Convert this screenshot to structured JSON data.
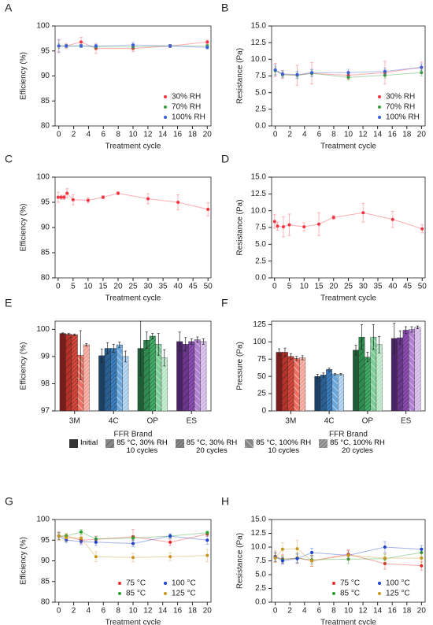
{
  "chart_data": [
    {
      "label": "A",
      "type": "line",
      "x_label": "Treatment cycle",
      "y_label": "Efficiency (%)",
      "x": [
        0,
        1,
        3,
        5,
        10,
        15,
        20
      ],
      "xlim": [
        -0.5,
        20.5
      ],
      "xticks": [
        0,
        2,
        4,
        6,
        8,
        10,
        12,
        14,
        16,
        18,
        20
      ],
      "ylim": [
        80,
        100
      ],
      "yticks": [
        80,
        85,
        90,
        95,
        100
      ],
      "legend": "lower right",
      "legend_columns": 1,
      "series": [
        {
          "name": "30% RH",
          "color": "#f5333f",
          "values": [
            96,
            96,
            96.8,
            95.5,
            95.5,
            96,
            96.8
          ],
          "errors": [
            1.2,
            0.5,
            0.9,
            1.0,
            0.6,
            0.3,
            0.4
          ]
        },
        {
          "name": "70% RH",
          "color": "#3a9a3a",
          "values": [
            96,
            96,
            96,
            95.8,
            95.8,
            96,
            96
          ],
          "errors": [
            0.5,
            0.3,
            0.3,
            0.4,
            0.4,
            0.3,
            0.3
          ]
        },
        {
          "name": "100% RH",
          "color": "#3a5fd9",
          "values": [
            96,
            96,
            96,
            96,
            96.2,
            96,
            95.7
          ],
          "errors": [
            1.3,
            0.3,
            0.3,
            0.3,
            0.5,
            0.3,
            0.3
          ]
        }
      ]
    },
    {
      "label": "B",
      "type": "line",
      "x_label": "Treatment cycle",
      "y_label": "Resistance (Pa)",
      "x": [
        0,
        1,
        3,
        5,
        10,
        15,
        20
      ],
      "xlim": [
        -0.5,
        20.5
      ],
      "xticks": [
        0,
        2,
        4,
        6,
        8,
        10,
        12,
        14,
        16,
        18,
        20
      ],
      "ylim": [
        0,
        15
      ],
      "yticks": [
        {
          "value": 0,
          "label": "0.0"
        },
        {
          "value": 2.5,
          "label": "2.5"
        },
        {
          "value": 5,
          "label": "5.0"
        },
        {
          "value": 7.5,
          "label": "7.5"
        },
        {
          "value": 10,
          "label": "10.0"
        },
        {
          "value": 12.5,
          "label": "12.5"
        },
        {
          "value": 15,
          "label": "15.0"
        }
      ],
      "legend": "lower right",
      "legend_columns": 1,
      "series": [
        {
          "name": "30% RH",
          "color": "#f5333f",
          "values": [
            8.4,
            7.7,
            7.6,
            7.9,
            7.6,
            8.0,
            8.8
          ],
          "errors": [
            1.0,
            0.6,
            1.5,
            1.6,
            0.6,
            1.7,
            0.8
          ]
        },
        {
          "name": "70% RH",
          "color": "#3a9a3a",
          "values": [
            8.3,
            7.7,
            7.6,
            7.9,
            7.3,
            7.6,
            8.0
          ],
          "errors": [
            0.6,
            0.4,
            0.5,
            0.5,
            0.4,
            0.4,
            0.5
          ]
        },
        {
          "name": "100% RH",
          "color": "#3a5fd9",
          "values": [
            8.4,
            7.8,
            7.7,
            8.0,
            8.0,
            8.2,
            8.8
          ],
          "errors": [
            0.8,
            0.5,
            0.5,
            0.5,
            0.5,
            0.5,
            0.5
          ]
        }
      ]
    },
    {
      "label": "C",
      "type": "line",
      "x_label": "Treatment cycle",
      "y_label": "Efficiency (%)",
      "x": [
        0,
        1,
        2,
        3,
        5,
        10,
        15,
        20,
        30,
        40,
        50
      ],
      "xlim": [
        -1,
        51
      ],
      "xticks": [
        0,
        5,
        10,
        15,
        20,
        25,
        30,
        35,
        40,
        45,
        50
      ],
      "ylim": [
        80,
        100
      ],
      "yticks": [
        80,
        85,
        90,
        95,
        100
      ],
      "color": "#f5333f",
      "values": [
        96,
        96,
        96,
        96.8,
        95.5,
        95.4,
        96,
        96.8,
        95.7,
        95,
        93.6
      ],
      "errors": [
        1.0,
        0.4,
        0.4,
        0.9,
        1.0,
        0.5,
        0.3,
        0.3,
        1.0,
        1.5,
        1.3
      ]
    },
    {
      "label": "D",
      "type": "line",
      "x_label": "Treatment cycle",
      "y_label": "Resistance (Pa)",
      "x": [
        0,
        1,
        3,
        5,
        10,
        15,
        20,
        30,
        40,
        50
      ],
      "xlim": [
        -1,
        51
      ],
      "xticks": [
        0,
        5,
        10,
        15,
        20,
        25,
        30,
        35,
        40,
        45,
        50
      ],
      "ylim": [
        0,
        15
      ],
      "yticks": [
        {
          "value": 0,
          "label": "0.0"
        },
        {
          "value": 2.5,
          "label": "2.5"
        },
        {
          "value": 5,
          "label": "5.0"
        },
        {
          "value": 7.5,
          "label": "7.5"
        },
        {
          "value": 10,
          "label": "10.0"
        },
        {
          "value": 12.5,
          "label": "12.5"
        },
        {
          "value": 15,
          "label": "15.0"
        }
      ],
      "color": "#f5333f",
      "values": [
        8.4,
        7.7,
        7.6,
        7.9,
        7.6,
        8.0,
        9.0,
        9.7,
        8.7,
        7.3
      ],
      "errors": [
        1.0,
        0.6,
        1.5,
        1.6,
        0.6,
        1.7,
        0.3,
        1.4,
        1.2,
        0.6
      ]
    },
    {
      "label": "E",
      "type": "bar",
      "x_label": "FFR Brand",
      "y_label": "Efficiency (%)",
      "categories": [
        "3M",
        "4C",
        "OP",
        "ES"
      ],
      "ylim": [
        97,
        100.3
      ],
      "yticks": [
        97,
        98,
        99,
        100
      ],
      "category_colors": [
        [
          "#7b1c1c",
          "#b83227",
          "#d9463a",
          "#ef6f62",
          "#f4a196"
        ],
        [
          "#1c3f66",
          "#2a5f94",
          "#3a7fc1",
          "#6aa7dc",
          "#a6cbeb"
        ],
        [
          "#1f5e36",
          "#2e8b4e",
          "#3fae66",
          "#7dcf97",
          "#b5e6c3"
        ],
        [
          "#4a2266",
          "#6b3590",
          "#8c4bb5",
          "#b182d1",
          "#d2b6e6"
        ]
      ],
      "series": [
        {
          "name": "Initial",
          "hatch": "solid",
          "values": [
            99.85,
            99.03,
            99.3,
            99.55
          ],
          "errors": [
            0.02,
            0.25,
            1.0,
            0.35
          ]
        },
        {
          "name": "85 °C, 30% RH\n10 cycles",
          "hatch": "sparse",
          "values": [
            99.82,
            99.3,
            99.6,
            99.45
          ],
          "errors": [
            0.03,
            0.2,
            0.3,
            0.25
          ]
        },
        {
          "name": "85 °C, 30% RH\n20 cycles",
          "hatch": "dense",
          "values": [
            99.8,
            99.3,
            99.75,
            99.55
          ],
          "errors": [
            0.03,
            0.15,
            0.1,
            0.1
          ]
        },
        {
          "name": "85 °C, 100% RH\n10 cycles",
          "hatch": "back-sparse",
          "values": [
            99.05,
            99.43,
            99.45,
            99.62
          ],
          "errors": [
            0.9,
            0.1,
            0.4,
            0.1
          ]
        },
        {
          "name": "85 °C, 100% RH\n20 cycles",
          "hatch": "back-dense",
          "values": [
            99.43,
            99.0,
            98.95,
            99.55
          ],
          "errors": [
            0.05,
            0.2,
            0.3,
            0.1
          ]
        }
      ]
    },
    {
      "label": "F",
      "type": "bar",
      "x_label": "FFR Brand",
      "y_label": "Pressure (Pa)",
      "categories": [
        "3M",
        "4C",
        "OP",
        "ES"
      ],
      "ylim": [
        0,
        130
      ],
      "yticks": [
        0,
        25,
        50,
        75,
        100,
        125
      ],
      "category_colors": [
        [
          "#7b1c1c",
          "#b83227",
          "#d9463a",
          "#ef6f62",
          "#f4a196"
        ],
        [
          "#1c3f66",
          "#2a5f94",
          "#3a7fc1",
          "#6aa7dc",
          "#a6cbeb"
        ],
        [
          "#1f5e36",
          "#2e8b4e",
          "#3fae66",
          "#7dcf97",
          "#b5e6c3"
        ],
        [
          "#4a2266",
          "#6b3590",
          "#8c4bb5",
          "#b182d1",
          "#d2b6e6"
        ]
      ],
      "series": [
        {
          "hatch": "solid",
          "values": [
            85,
            50,
            88,
            105
          ],
          "errors": [
            5,
            3,
            7,
            22
          ]
        },
        {
          "hatch": "sparse",
          "values": [
            85,
            52,
            107,
            106
          ],
          "errors": [
            6,
            3,
            18,
            10
          ]
        },
        {
          "hatch": "dense",
          "values": [
            79,
            60,
            78,
            117
          ],
          "errors": [
            4,
            2,
            7,
            5
          ]
        },
        {
          "hatch": "back-sparse",
          "values": [
            76,
            53,
            107,
            118
          ],
          "errors": [
            3,
            1,
            18,
            4
          ]
        },
        {
          "hatch": "back-dense",
          "values": [
            77,
            53,
            96,
            121
          ],
          "errors": [
            3,
            1,
            12,
            2
          ]
        }
      ]
    },
    {
      "label": "G",
      "type": "line",
      "x_label": "Treatment cycle",
      "y_label": "Efficiency (%)",
      "x": [
        0,
        1,
        3,
        5,
        10,
        15,
        20
      ],
      "xlim": [
        -0.5,
        20.5
      ],
      "xticks": [
        0,
        2,
        4,
        6,
        8,
        10,
        12,
        14,
        16,
        18,
        20
      ],
      "ylim": [
        80,
        100
      ],
      "yticks": [
        80,
        85,
        90,
        95,
        100
      ],
      "legend": "lower right",
      "legend_columns": 2,
      "series": [
        {
          "name": "75 °C",
          "color": "#e8262a",
          "values": [
            96,
            96,
            95,
            95.2,
            95.8,
            94.5,
            96.5
          ],
          "errors": [
            1.0,
            0.6,
            0.8,
            0.8,
            1.8,
            0.8,
            0.5
          ]
        },
        {
          "name": "85 °C",
          "color": "#2ca02c",
          "values": [
            96,
            96,
            97,
            95.3,
            95.5,
            96,
            96.8
          ],
          "errors": [
            0.8,
            0.5,
            0.6,
            0.6,
            0.6,
            0.4,
            0.4
          ]
        },
        {
          "name": "100 °C",
          "color": "#1f3fcf",
          "values": [
            96,
            95,
            94.7,
            94.5,
            94.2,
            96,
            95
          ],
          "errors": [
            0.8,
            0.6,
            0.8,
            0.8,
            0.8,
            0.6,
            1.0
          ]
        },
        {
          "name": "125 °C",
          "color": "#c8961e",
          "values": [
            96,
            95.6,
            95.5,
            91,
            90.8,
            91,
            91.3
          ],
          "errors": [
            0.8,
            0.8,
            0.8,
            1.2,
            1.0,
            0.9,
            1.5
          ]
        }
      ]
    },
    {
      "label": "H",
      "type": "line",
      "x_label": "Treatment cycle",
      "y_label": "Resistance (Pa)",
      "x": [
        0,
        1,
        3,
        5,
        10,
        15,
        20
      ],
      "xlim": [
        -0.5,
        20.5
      ],
      "xticks": [
        0,
        2,
        4,
        6,
        8,
        10,
        12,
        14,
        16,
        18,
        20
      ],
      "ylim": [
        0,
        15
      ],
      "yticks": [
        {
          "value": 0,
          "label": "0.0"
        },
        {
          "value": 2.5,
          "label": "2.5"
        },
        {
          "value": 5,
          "label": "5.0"
        },
        {
          "value": 7.5,
          "label": "7.5"
        },
        {
          "value": 10,
          "label": "10.0"
        },
        {
          "value": 12.5,
          "label": "12.5"
        },
        {
          "value": 15,
          "label": "15.0"
        }
      ],
      "legend": "lower right",
      "legend_columns": 2,
      "series": [
        {
          "name": "75 °C",
          "color": "#e8262a",
          "values": [
            8.3,
            7.8,
            8.0,
            7.5,
            8.7,
            7.0,
            6.6
          ],
          "errors": [
            1.0,
            0.8,
            1.0,
            1.0,
            0.8,
            1.0,
            0.8
          ]
        },
        {
          "name": "85 °C",
          "color": "#2ca02c",
          "values": [
            8.2,
            7.7,
            8.0,
            7.7,
            7.8,
            7.9,
            9.0
          ],
          "errors": [
            0.8,
            0.6,
            0.8,
            0.8,
            0.8,
            0.8,
            0.8
          ]
        },
        {
          "name": "100 °C",
          "color": "#1f3fcf",
          "values": [
            8.2,
            7.5,
            7.9,
            9.0,
            8.5,
            10.0,
            9.6
          ],
          "errors": [
            0.8,
            0.6,
            0.8,
            0.8,
            0.8,
            1.0,
            0.7
          ]
        },
        {
          "name": "125 °C",
          "color": "#c8961e",
          "values": [
            8.0,
            9.6,
            9.7,
            7.5,
            8.5,
            8.0,
            8.0
          ],
          "errors": [
            0.8,
            1.2,
            1.5,
            1.0,
            0.8,
            0.8,
            0.8
          ]
        }
      ]
    }
  ]
}
